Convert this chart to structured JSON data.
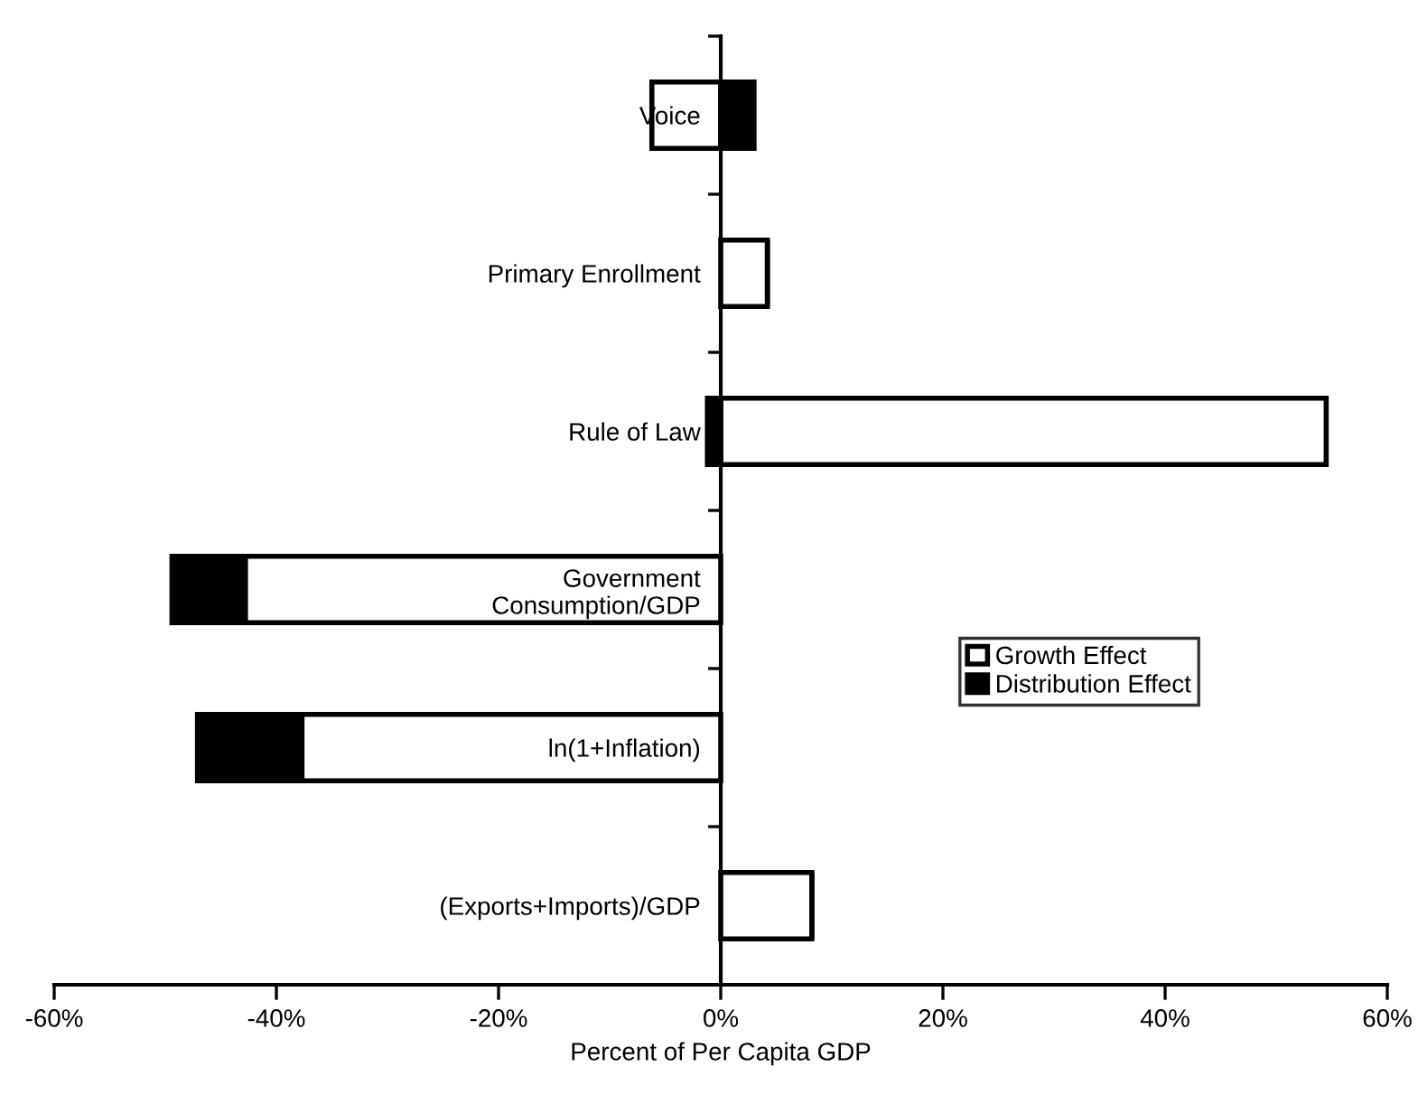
{
  "chart_data": {
    "type": "bar",
    "orientation": "horizontal",
    "stacked": true,
    "xlabel": "Percent of Per Capita GDP",
    "categories": [
      "Voice",
      "Primary Enrollment",
      "Rule of Law",
      "Government\nConsumption/GDP",
      "ln(1+Inflation)",
      "(Exports+Imports)/GDP"
    ],
    "series": [
      {
        "name": "Growth Effect",
        "color": "#ffffff",
        "values": [
          -6.2,
          4.2,
          54.5,
          -42.8,
          -37.7,
          8.2
        ]
      },
      {
        "name": "Distribution Effect",
        "color": "#000000",
        "values": [
          3.0,
          0,
          -1.2,
          -6.6,
          -9.4,
          0
        ]
      }
    ],
    "xlim": [
      -60,
      60
    ],
    "xticks": [
      {
        "value": -60,
        "label": "-60%"
      },
      {
        "value": -40,
        "label": "-40%"
      },
      {
        "value": -20,
        "label": "-20%"
      },
      {
        "value": 0,
        "label": "0%"
      },
      {
        "value": 20,
        "label": "20%"
      },
      {
        "value": 40,
        "label": "40%"
      },
      {
        "value": 60,
        "label": "60%"
      }
    ],
    "grid": false,
    "legend": "right"
  }
}
